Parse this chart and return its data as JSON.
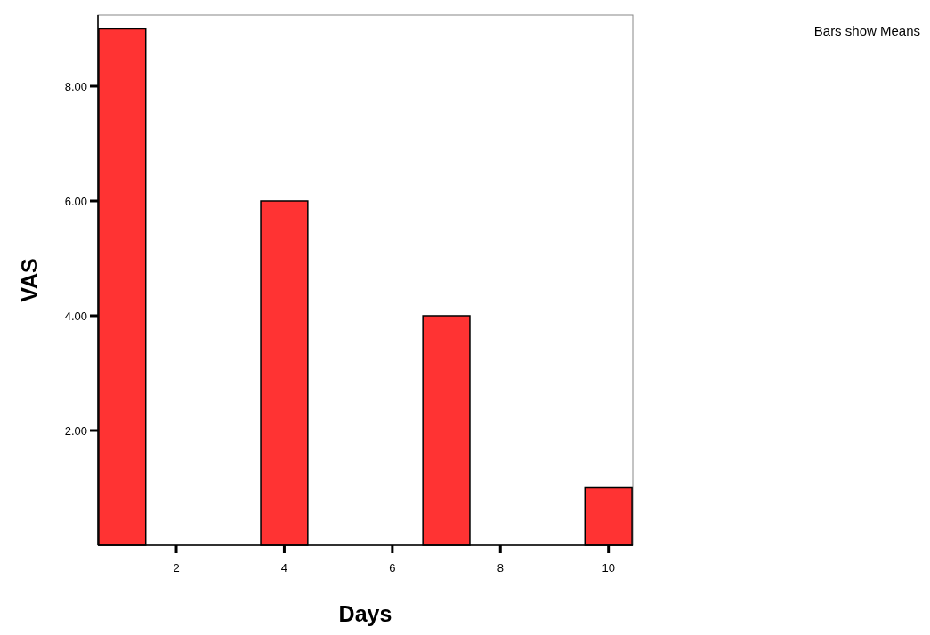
{
  "chart_data": {
    "type": "bar",
    "xlabel": "Days",
    "ylabel": "VAS",
    "annotations": [
      "Bars show Means"
    ],
    "x": [
      1,
      4,
      7,
      10
    ],
    "values": [
      9,
      6,
      4,
      1
    ],
    "color": "#ff3333",
    "xlim": [
      0.55,
      10.45
    ],
    "xticks": [
      2,
      4,
      6,
      8,
      10
    ],
    "ylim": [
      0,
      9.24
    ],
    "yticks": [
      {
        "value": 2,
        "label": "2.00"
      },
      {
        "value": 4,
        "label": "4.00"
      },
      {
        "value": 6,
        "label": "6.00"
      },
      {
        "value": 8,
        "label": "8.00"
      }
    ],
    "grid": false
  }
}
